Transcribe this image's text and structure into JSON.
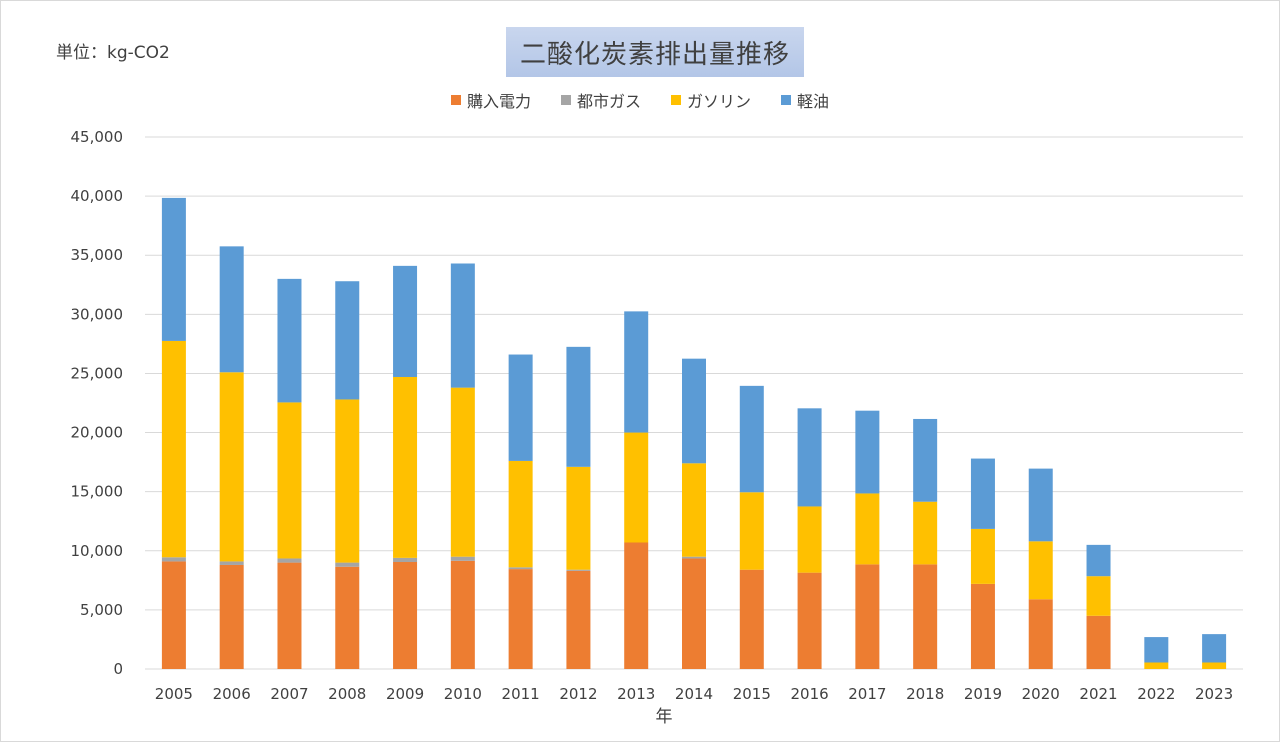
{
  "unit_label": "単位：kg-CO2",
  "colors": {
    "electricity": "#ed7d31",
    "city_gas": "#a5a5a5",
    "gasoline": "#ffc000",
    "diesel": "#5b9bd5",
    "grid": "#d9d9d9"
  },
  "chart_data": {
    "type": "bar",
    "stacked": true,
    "title": "二酸化炭素排出量推移",
    "xlabel": "年",
    "ylabel": "",
    "ylim": [
      0,
      45000
    ],
    "yticks": [
      0,
      5000,
      10000,
      15000,
      20000,
      25000,
      30000,
      35000,
      40000,
      45000
    ],
    "ytick_labels": [
      "0",
      "5,000",
      "10,000",
      "15,000",
      "20,000",
      "25,000",
      "30,000",
      "35,000",
      "40,000",
      "45,000"
    ],
    "grid": true,
    "legend_position": "top-center",
    "categories": [
      "2005",
      "2006",
      "2007",
      "2008",
      "2009",
      "2010",
      "2011",
      "2012",
      "2013",
      "2014",
      "2015",
      "2016",
      "2017",
      "2018",
      "2019",
      "2020",
      "2021",
      "2022",
      "2023"
    ],
    "series": [
      {
        "name": "購入電力",
        "color": "#ed7d31",
        "values": [
          9100,
          8800,
          9000,
          8650,
          9050,
          9150,
          8450,
          8300,
          10700,
          9350,
          8400,
          8150,
          8850,
          8850,
          7200,
          5900,
          4500,
          0,
          0
        ]
      },
      {
        "name": "都市ガス",
        "color": "#a5a5a5",
        "values": [
          350,
          300,
          350,
          350,
          350,
          350,
          150,
          100,
          0,
          150,
          0,
          0,
          0,
          0,
          0,
          0,
          0,
          0,
          0
        ]
      },
      {
        "name": "ガソリン",
        "color": "#ffc000",
        "values": [
          18300,
          16000,
          13200,
          13800,
          15300,
          14300,
          9000,
          8700,
          9300,
          7900,
          6550,
          5600,
          6000,
          5300,
          4650,
          4900,
          3350,
          550,
          550
        ]
      },
      {
        "name": "軽油",
        "color": "#5b9bd5",
        "values": [
          12100,
          10650,
          10450,
          10000,
          9400,
          10500,
          9000,
          10150,
          10250,
          8850,
          9000,
          8300,
          7000,
          7000,
          5950,
          6150,
          2650,
          2150,
          2400
        ]
      }
    ]
  }
}
